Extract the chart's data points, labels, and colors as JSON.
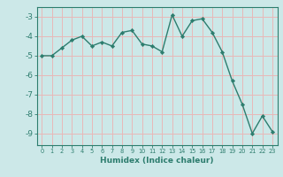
{
  "x": [
    0,
    1,
    2,
    3,
    4,
    5,
    6,
    7,
    8,
    9,
    10,
    11,
    12,
    13,
    14,
    15,
    16,
    17,
    18,
    19,
    20,
    21,
    22,
    23
  ],
  "y": [
    -5.0,
    -5.0,
    -4.6,
    -4.2,
    -4.0,
    -4.5,
    -4.3,
    -4.5,
    -3.8,
    -3.7,
    -4.4,
    -4.5,
    -4.8,
    -2.9,
    -4.0,
    -3.2,
    -3.1,
    -3.8,
    -4.8,
    -6.3,
    -7.5,
    -9.0,
    -8.1,
    -8.9
  ],
  "xlim": [
    -0.5,
    23.5
  ],
  "ylim": [
    -9.6,
    -2.5
  ],
  "yticks": [
    -9,
    -8,
    -7,
    -6,
    -5,
    -4,
    -3
  ],
  "xticks": [
    0,
    1,
    2,
    3,
    4,
    5,
    6,
    7,
    8,
    9,
    10,
    11,
    12,
    13,
    14,
    15,
    16,
    17,
    18,
    19,
    20,
    21,
    22,
    23
  ],
  "xlabel": "Humidex (Indice chaleur)",
  "line_color": "#2d7d6e",
  "marker": "D",
  "marker_size": 2.2,
  "bg_color": "#cce8e8",
  "grid_color": "#e8b8b8",
  "axis_color": "#2d7d6e",
  "tick_label_color": "#2d7d6e",
  "xlabel_color": "#2d7d6e"
}
